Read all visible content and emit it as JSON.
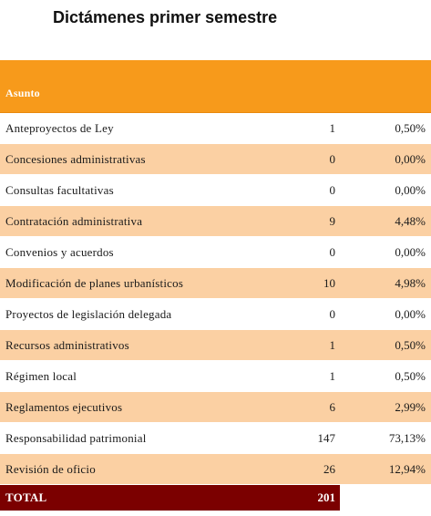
{
  "title": "Dictámenes primer semestre",
  "table": {
    "header": "Asunto",
    "rows": [
      {
        "name": "Anteproyectos de Ley",
        "count": "1",
        "pct": "0,50%"
      },
      {
        "name": "Concesiones administrativas",
        "count": "0",
        "pct": "0,00%"
      },
      {
        "name": "Consultas facultativas",
        "count": "0",
        "pct": "0,00%"
      },
      {
        "name": "Contratación administrativa",
        "count": "9",
        "pct": "4,48%"
      },
      {
        "name": "Convenios y acuerdos",
        "count": "0",
        "pct": "0,00%"
      },
      {
        "name": "Modificación de planes urbanísticos",
        "count": "10",
        "pct": "4,98%"
      },
      {
        "name": "Proyectos de legislación delegada",
        "count": "0",
        "pct": "0,00%"
      },
      {
        "name": "Recursos administrativos",
        "count": "1",
        "pct": "0,50%"
      },
      {
        "name": "Régimen local",
        "count": "1",
        "pct": "0,50%"
      },
      {
        "name": "Reglamentos ejecutivos",
        "count": "6",
        "pct": "2,99%"
      },
      {
        "name": "Responsabilidad patrimonial",
        "count": "147",
        "pct": "73,13%"
      },
      {
        "name": "Revisión de oficio",
        "count": "26",
        "pct": "12,94%"
      }
    ],
    "total_label": "TOTAL",
    "total_count": "201"
  },
  "colors": {
    "header_bg": "#f79a1b",
    "band_bg": "#fbd0a3",
    "total_bg": "#7b0000"
  }
}
